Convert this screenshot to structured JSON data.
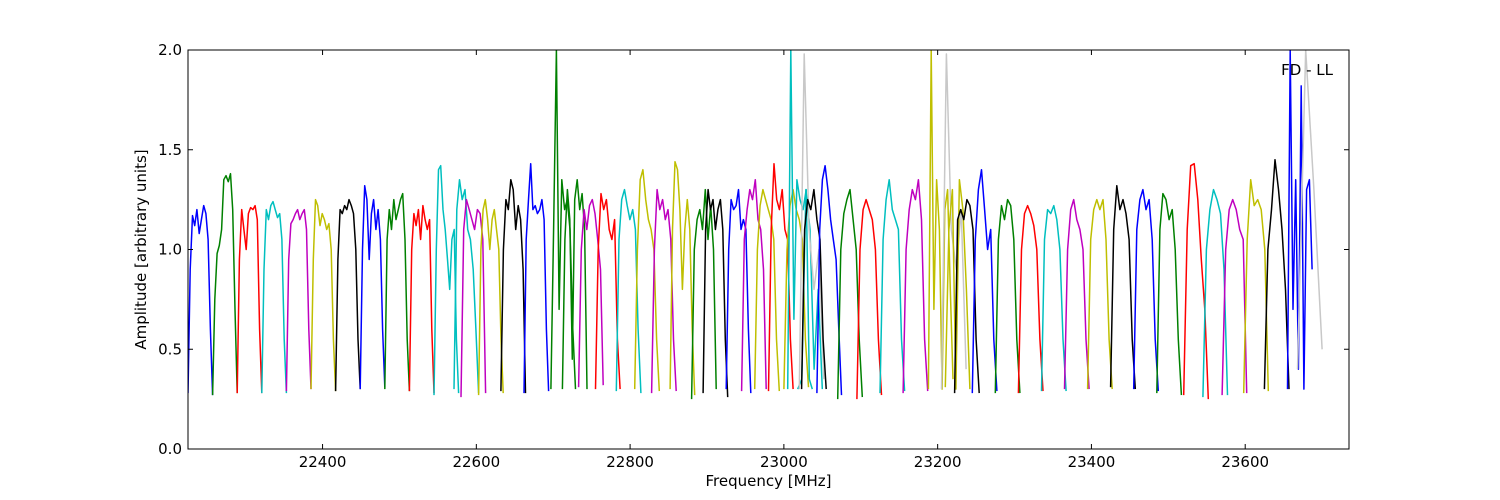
{
  "chart_data": {
    "type": "line",
    "xlabel": "Frequency [MHz]",
    "ylabel": "Amplitude [arbitrary units]",
    "annotation": "FD - LL",
    "xlim": [
      22225,
      23735
    ],
    "ylim": [
      0.0,
      2.0
    ],
    "xticks": [
      22400,
      22600,
      22800,
      23000,
      23200,
      23400,
      23600
    ],
    "yticks": [
      0.0,
      0.5,
      1.0,
      1.5,
      2.0
    ],
    "xtick_labels": [
      "22400",
      "22600",
      "22800",
      "23000",
      "23200",
      "23400",
      "23600"
    ],
    "ytick_labels": [
      "0.0",
      "0.5",
      "1.0",
      "1.5",
      "2.0"
    ],
    "grid": false,
    "color_cycle": [
      "#0000ff",
      "#008000",
      "#ff0000",
      "#00bfbf",
      "#bf00bf",
      "#bfbf00",
      "#000000"
    ],
    "segment_width_mhz": 32,
    "segments": [
      {
        "start": 22225,
        "color": "#0000ff",
        "values": [
          0.28,
          0.9,
          1.17,
          1.12,
          1.2,
          1.08,
          1.15,
          1.22,
          1.18,
          1.05,
          0.6,
          0.27
        ]
      },
      {
        "start": 22257,
        "color": "#008000",
        "values": [
          0.27,
          0.75,
          0.98,
          1.02,
          1.1,
          1.35,
          1.37,
          1.34,
          1.38,
          1.2,
          0.7,
          0.28
        ]
      },
      {
        "start": 22289,
        "color": "#ff0000",
        "values": [
          0.28,
          0.95,
          1.2,
          1.1,
          1.0,
          1.18,
          1.21,
          1.2,
          1.22,
          1.15,
          0.6,
          0.28
        ]
      },
      {
        "start": 22321,
        "color": "#00bfbf",
        "values": [
          0.28,
          0.9,
          1.2,
          1.15,
          1.22,
          1.24,
          1.2,
          1.16,
          1.18,
          1.05,
          0.55,
          0.28
        ]
      },
      {
        "start": 22353,
        "color": "#bf00bf",
        "values": [
          0.29,
          0.95,
          1.13,
          1.15,
          1.18,
          1.2,
          1.15,
          1.18,
          1.2,
          1.1,
          0.6,
          0.3
        ]
      },
      {
        "start": 22385,
        "color": "#bfbf00",
        "values": [
          0.3,
          0.95,
          1.25,
          1.22,
          1.12,
          1.18,
          1.15,
          1.1,
          1.13,
          1.0,
          0.55,
          0.29
        ]
      },
      {
        "start": 22417,
        "color": "#000000",
        "values": [
          0.29,
          0.95,
          1.2,
          1.18,
          1.22,
          1.2,
          1.25,
          1.22,
          1.18,
          1.0,
          0.55,
          0.3
        ]
      },
      {
        "start": 22449,
        "color": "#0000ff",
        "values": [
          0.3,
          1.0,
          1.32,
          1.25,
          0.95,
          1.18,
          1.25,
          1.1,
          1.2,
          1.05,
          0.6,
          0.31
        ]
      },
      {
        "start": 22481,
        "color": "#008000",
        "values": [
          0.3,
          1.05,
          1.2,
          1.1,
          1.25,
          1.15,
          1.2,
          1.25,
          1.28,
          1.05,
          0.55,
          0.29
        ]
      },
      {
        "start": 22513,
        "color": "#ff0000",
        "values": [
          0.29,
          1.0,
          1.18,
          1.12,
          1.2,
          1.05,
          1.22,
          1.15,
          1.1,
          1.15,
          0.6,
          0.28
        ]
      },
      {
        "start": 22545,
        "color": "#00bfbf",
        "values": [
          0.27,
          1.0,
          1.4,
          1.42,
          1.2,
          1.1,
          0.95,
          0.8,
          1.05,
          1.1,
          0.55,
          0.28
        ]
      },
      {
        "start": 22571,
        "color": "#00bfbf",
        "values": [
          0.3,
          1.2,
          1.35,
          1.25,
          1.3,
          1.1,
          1.05,
          0.9,
          0.6,
          0.28
        ]
      },
      {
        "start": 22580,
        "color": "#bf00bf",
        "values": [
          0.26,
          1.1,
          1.25,
          1.2,
          1.15,
          1.1,
          1.2,
          1.18,
          1.05,
          0.28
        ]
      },
      {
        "start": 22603,
        "color": "#bfbf00",
        "values": [
          0.27,
          1.0,
          1.2,
          1.25,
          1.15,
          1.0,
          1.15,
          1.2,
          1.1,
          1.0,
          0.55,
          0.28
        ]
      },
      {
        "start": 22632,
        "color": "#000000",
        "values": [
          0.29,
          1.0,
          1.25,
          1.2,
          1.35,
          1.3,
          1.1,
          1.22,
          1.15,
          0.9,
          0.28
        ]
      },
      {
        "start": 22662,
        "color": "#0000ff",
        "values": [
          0.28,
          1.05,
          1.25,
          1.43,
          1.2,
          1.22,
          1.18,
          1.2,
          1.25,
          1.15,
          0.6,
          0.29
        ]
      },
      {
        "start": 22697,
        "color": "#008000",
        "values": [
          0.3,
          1.1,
          2.0,
          0.7,
          1.35,
          1.2,
          1.25,
          1.1,
          0.6,
          0.3
        ]
      },
      {
        "start": 22712,
        "color": "#008000",
        "values": [
          0.3,
          1.05,
          1.3,
          1.15,
          0.45,
          1.25,
          1.35,
          1.2,
          1.28,
          1.1,
          0.3
        ]
      },
      {
        "start": 22733,
        "color": "#bf00bf",
        "values": [
          0.31,
          1.0,
          1.2,
          1.1,
          1.22,
          1.25,
          1.18,
          1.05,
          0.9,
          0.32
        ]
      },
      {
        "start": 22755,
        "color": "#ff0000",
        "values": [
          0.3,
          1.0,
          1.28,
          1.2,
          1.25,
          1.1,
          1.05,
          1.15,
          0.55,
          0.3
        ]
      },
      {
        "start": 22782,
        "color": "#00bfbf",
        "values": [
          0.29,
          1.05,
          1.25,
          1.3,
          1.22,
          1.15,
          1.2,
          1.1,
          0.6,
          0.28
        ]
      },
      {
        "start": 22806,
        "color": "#bfbf00",
        "values": [
          0.3,
          1.0,
          1.35,
          1.4,
          1.25,
          1.15,
          1.1,
          1.0,
          0.55,
          0.29
        ]
      },
      {
        "start": 22828,
        "color": "#bf00bf",
        "values": [
          0.28,
          1.0,
          1.3,
          1.2,
          1.25,
          1.15,
          1.2,
          1.05,
          0.55,
          0.29
        ]
      },
      {
        "start": 22852,
        "color": "#bfbf00",
        "values": [
          0.3,
          1.1,
          1.44,
          1.4,
          1.2,
          0.8,
          1.1,
          1.25,
          1.1,
          0.6,
          0.27
        ]
      },
      {
        "start": 22880,
        "color": "#008000",
        "values": [
          0.25,
          1.0,
          1.15,
          1.2,
          1.1,
          1.3,
          1.05,
          1.22,
          1.0,
          0.3
        ]
      },
      {
        "start": 22895,
        "color": "#000000",
        "values": [
          0.28,
          1.1,
          1.3,
          1.2,
          1.25,
          1.1,
          1.2,
          1.25,
          1.1,
          0.55,
          0.26
        ]
      },
      {
        "start": 22925,
        "color": "#0000ff",
        "values": [
          0.3,
          1.0,
          1.25,
          1.2,
          1.22,
          1.3,
          1.1,
          1.15,
          1.1,
          0.6,
          0.28
        ]
      },
      {
        "start": 22945,
        "color": "#bf00bf",
        "values": [
          0.29,
          1.05,
          1.2,
          1.3,
          1.25,
          1.35,
          1.15,
          1.1,
          0.9,
          0.3
        ]
      },
      {
        "start": 22962,
        "color": "#bfbf00",
        "values": [
          0.3,
          1.0,
          1.22,
          1.3,
          1.25,
          1.2,
          1.15,
          1.05,
          0.55,
          0.29
        ]
      },
      {
        "start": 22980,
        "color": "#ff0000",
        "values": [
          0.29,
          1.1,
          1.43,
          1.25,
          1.2,
          1.3,
          1.1,
          1.05,
          0.55,
          0.3
        ]
      },
      {
        "start": 23000,
        "color": "#bfbf00",
        "values": [
          0.3,
          1.0,
          1.22,
          1.3,
          1.2,
          1.15,
          1.05,
          0.55,
          0.31
        ]
      },
      {
        "start": 23005,
        "color": "#00bfbf",
        "values": [
          0.3,
          2.0,
          0.65,
          1.35,
          1.25,
          1.2,
          1.3,
          0.35,
          0.3
        ]
      },
      {
        "start": 23018,
        "color": "#00bfbf",
        "values": [
          0.3,
          0.35,
          1.3,
          1.1,
          0.4,
          0.8,
          0.3
        ]
      },
      {
        "start": 23020,
        "color": "#c8c8c8",
        "values": [
          0.3,
          1.98,
          1.1,
          0.8,
          1.0,
          0.35
        ]
      },
      {
        "start": 23023,
        "color": "#000000",
        "values": [
          0.3,
          1.1,
          1.25,
          1.2,
          1.3,
          1.15,
          1.05,
          0.55,
          0.3
        ]
      },
      {
        "start": 23043,
        "color": "#0000ff",
        "values": [
          0.28,
          1.1,
          1.35,
          1.42,
          1.3,
          1.15,
          1.05,
          0.95,
          0.6,
          0.27
        ]
      },
      {
        "start": 23070,
        "color": "#008000",
        "values": [
          0.25,
          1.0,
          1.18,
          1.25,
          1.3,
          1.15,
          1.0,
          0.55,
          0.26
        ]
      },
      {
        "start": 23095,
        "color": "#ff0000",
        "values": [
          0.25,
          1.0,
          1.2,
          1.25,
          1.2,
          1.15,
          1.0,
          0.55,
          0.27
        ]
      },
      {
        "start": 23125,
        "color": "#00bfbf",
        "values": [
          0.28,
          1.05,
          1.25,
          1.35,
          1.2,
          1.15,
          1.1,
          0.55,
          0.29
        ]
      },
      {
        "start": 23155,
        "color": "#bf00bf",
        "values": [
          0.28,
          1.0,
          1.2,
          1.3,
          1.25,
          1.35,
          1.15,
          0.55,
          0.29
        ]
      },
      {
        "start": 23188,
        "color": "#bfbf00",
        "values": [
          0.3,
          2.0,
          0.7,
          1.35,
          1.1,
          0.3,
          1.2,
          1.3,
          0.8,
          0.35
        ]
      },
      {
        "start": 23205,
        "color": "#c8c8c8",
        "values": [
          0.3,
          1.98,
          1.1,
          0.9,
          1.2,
          0.4
        ]
      },
      {
        "start": 23210,
        "color": "#bfbf00",
        "values": [
          0.31,
          1.1,
          1.3,
          0.3,
          1.35,
          1.2,
          0.8,
          0.3
        ]
      },
      {
        "start": 23222,
        "color": "#000000",
        "values": [
          0.28,
          1.15,
          1.2,
          1.15,
          1.25,
          1.22,
          1.1,
          0.55,
          0.28
        ]
      },
      {
        "start": 23245,
        "color": "#0000ff",
        "values": [
          0.28,
          1.05,
          1.3,
          1.4,
          1.2,
          1.0,
          1.1,
          0.55,
          0.29
        ]
      },
      {
        "start": 23275,
        "color": "#008000",
        "values": [
          0.28,
          1.05,
          1.22,
          1.15,
          1.25,
          1.22,
          1.05,
          0.55,
          0.28
        ]
      },
      {
        "start": 23305,
        "color": "#ff0000",
        "values": [
          0.28,
          1.0,
          1.18,
          1.22,
          1.18,
          1.12,
          1.0,
          0.55,
          0.29
        ]
      },
      {
        "start": 23335,
        "color": "#00bfbf",
        "values": [
          0.29,
          1.05,
          1.2,
          1.18,
          1.22,
          1.15,
          1.0,
          0.55,
          0.29
        ]
      },
      {
        "start": 23365,
        "color": "#bf00bf",
        "values": [
          0.3,
          1.0,
          1.2,
          1.25,
          1.15,
          1.1,
          1.0,
          0.55,
          0.3
        ]
      },
      {
        "start": 23395,
        "color": "#bfbf00",
        "values": [
          0.3,
          1.05,
          1.2,
          1.25,
          1.2,
          1.25,
          1.05,
          0.55,
          0.3
        ]
      },
      {
        "start": 23425,
        "color": "#000000",
        "values": [
          0.31,
          1.1,
          1.32,
          1.2,
          1.25,
          1.18,
          1.05,
          0.55,
          0.3
        ]
      },
      {
        "start": 23455,
        "color": "#0000ff",
        "values": [
          0.3,
          1.1,
          1.25,
          1.3,
          1.2,
          1.25,
          1.05,
          0.55,
          0.29
        ]
      },
      {
        "start": 23485,
        "color": "#008000",
        "values": [
          0.28,
          1.1,
          1.28,
          1.25,
          1.15,
          1.2,
          1.0,
          0.55,
          0.27
        ]
      },
      {
        "start": 23520,
        "color": "#ff0000",
        "values": [
          0.27,
          1.1,
          1.42,
          1.43,
          1.25,
          0.95,
          0.7,
          0.25
        ]
      },
      {
        "start": 23545,
        "color": "#00bfbf",
        "values": [
          0.26,
          1.0,
          1.2,
          1.3,
          1.25,
          1.18,
          0.9,
          0.27
        ]
      },
      {
        "start": 23570,
        "color": "#bf00bf",
        "values": [
          0.27,
          1.0,
          1.2,
          1.25,
          1.2,
          1.1,
          1.05,
          0.28
        ]
      },
      {
        "start": 23598,
        "color": "#bfbf00",
        "values": [
          0.28,
          1.05,
          1.35,
          1.22,
          1.25,
          1.2,
          1.0,
          0.29
        ]
      },
      {
        "start": 23625,
        "color": "#000000",
        "values": [
          0.3,
          1.0,
          1.2,
          1.45,
          1.3,
          1.1,
          0.8,
          0.3
        ]
      },
      {
        "start": 23655,
        "color": "#0000ff",
        "values": [
          0.3,
          2.0,
          0.7,
          1.35,
          0.4,
          1.82,
          0.3,
          1.3,
          1.35,
          0.9
        ]
      },
      {
        "start": 23668,
        "color": "#c8c8c8",
        "values": [
          0.4,
          2.0,
          1.3,
          0.5
        ]
      }
    ]
  }
}
